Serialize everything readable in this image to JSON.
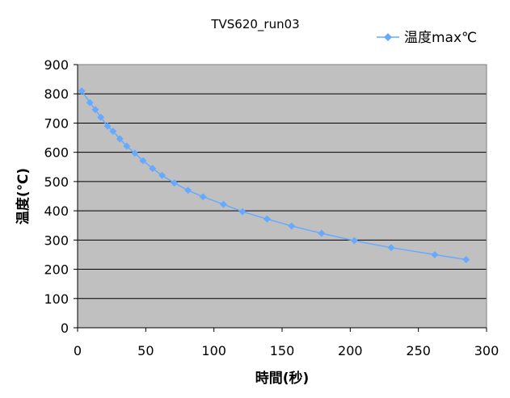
{
  "chart_data": {
    "type": "line",
    "title": "TVS620_run03",
    "xlabel": "時間(秒)",
    "ylabel": "温度(℃)",
    "xlim": [
      0,
      300
    ],
    "ylim": [
      0,
      900
    ],
    "xticks": [
      "0",
      "50",
      "100",
      "150",
      "200",
      "250",
      "300"
    ],
    "yticks": [
      "0",
      "100",
      "200",
      "300",
      "400",
      "500",
      "600",
      "700",
      "800",
      "900"
    ],
    "grid": "horizontal",
    "legend_position": "top-right",
    "plot_background": "#c0c0c0",
    "series": [
      {
        "name": "温度max℃",
        "color": "#66aaff",
        "marker": "diamond",
        "points": [
          [
            3,
            810
          ],
          [
            9,
            770
          ],
          [
            13,
            746
          ],
          [
            17,
            720
          ],
          [
            22,
            690
          ],
          [
            26,
            672
          ],
          [
            31,
            646
          ],
          [
            36,
            621
          ],
          [
            42,
            597
          ],
          [
            48,
            571
          ],
          [
            55,
            545
          ],
          [
            62,
            521
          ],
          [
            71,
            495
          ],
          [
            81,
            470
          ],
          [
            92,
            448
          ],
          [
            107,
            422
          ],
          [
            121,
            397
          ],
          [
            139,
            372
          ],
          [
            157,
            348
          ],
          [
            179,
            323
          ],
          [
            203,
            298
          ],
          [
            230,
            274
          ],
          [
            262,
            250
          ],
          [
            285,
            233
          ]
        ]
      }
    ]
  }
}
